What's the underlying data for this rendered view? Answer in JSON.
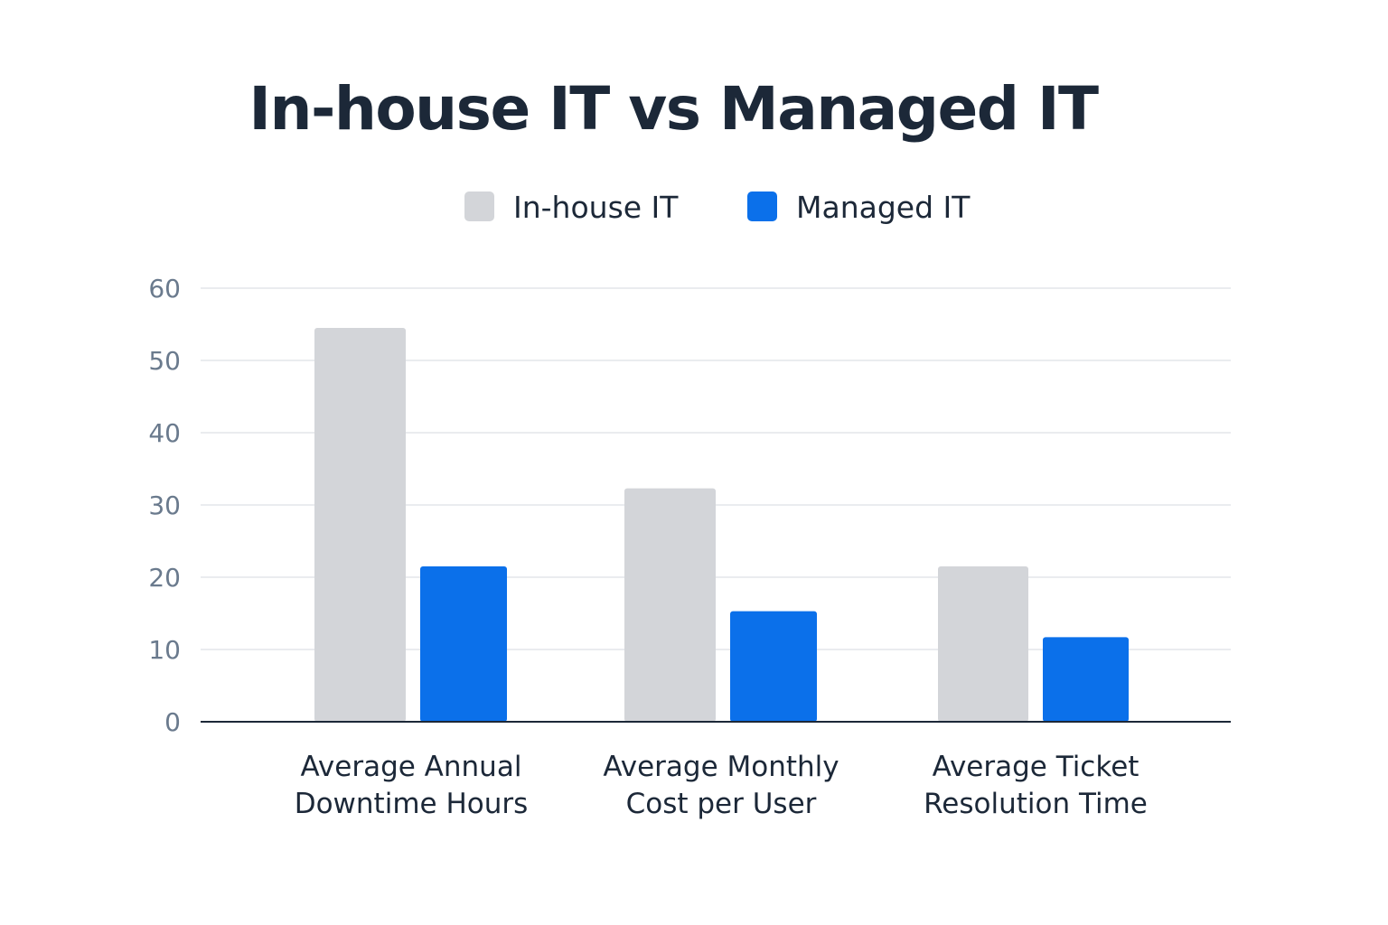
{
  "chart_data": {
    "type": "bar",
    "title": "In-house IT vs Managed IT",
    "xlabel": "",
    "ylabel": "",
    "categories": [
      [
        "Average Annual",
        "Downtime Hours"
      ],
      [
        "Average Monthly",
        "Cost per User"
      ],
      [
        "Average Ticket",
        "Resolution Time"
      ]
    ],
    "series": [
      {
        "name": "In-house IT",
        "color": "#d3d5d9",
        "values": [
          54.5,
          32.3,
          21.5
        ]
      },
      {
        "name": "Managed IT",
        "color": "#0b70ea",
        "values": [
          21.5,
          15.3,
          11.7
        ]
      }
    ],
    "ylim": [
      0,
      60
    ],
    "yticks": [
      0,
      10,
      20,
      30,
      40,
      50,
      60
    ],
    "grid": true,
    "legend_position": "top-center"
  }
}
